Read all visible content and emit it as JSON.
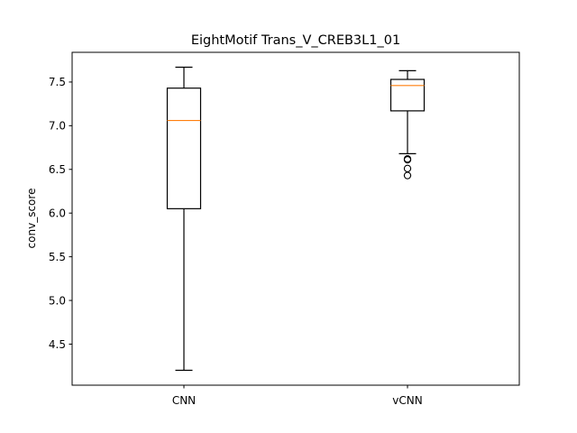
{
  "chart_data": {
    "type": "box",
    "title": "EightMotif Trans_V_CREB3L1_01",
    "ylabel": "conv_score",
    "xlabel": "",
    "ylim": [
      4.03,
      7.84
    ],
    "yticks": [
      "4.5",
      "5.0",
      "5.5",
      "6.0",
      "6.5",
      "7.0",
      "7.5"
    ],
    "categories": [
      "CNN",
      "vCNN"
    ],
    "boxes": [
      {
        "label": "CNN",
        "whisker_low": 4.2,
        "q1": 6.05,
        "median": 7.06,
        "q3": 7.43,
        "whisker_high": 7.67,
        "outliers": []
      },
      {
        "label": "vCNN",
        "whisker_low": 6.68,
        "q1": 7.17,
        "median": 7.46,
        "q3": 7.53,
        "whisker_high": 7.63,
        "outliers": [
          6.62,
          6.61,
          6.51,
          6.43
        ]
      }
    ],
    "grid": false,
    "colors": {
      "box": "#000000",
      "median": "#ff7f0e",
      "whisker": "#000000",
      "outlier": "#000000"
    }
  }
}
